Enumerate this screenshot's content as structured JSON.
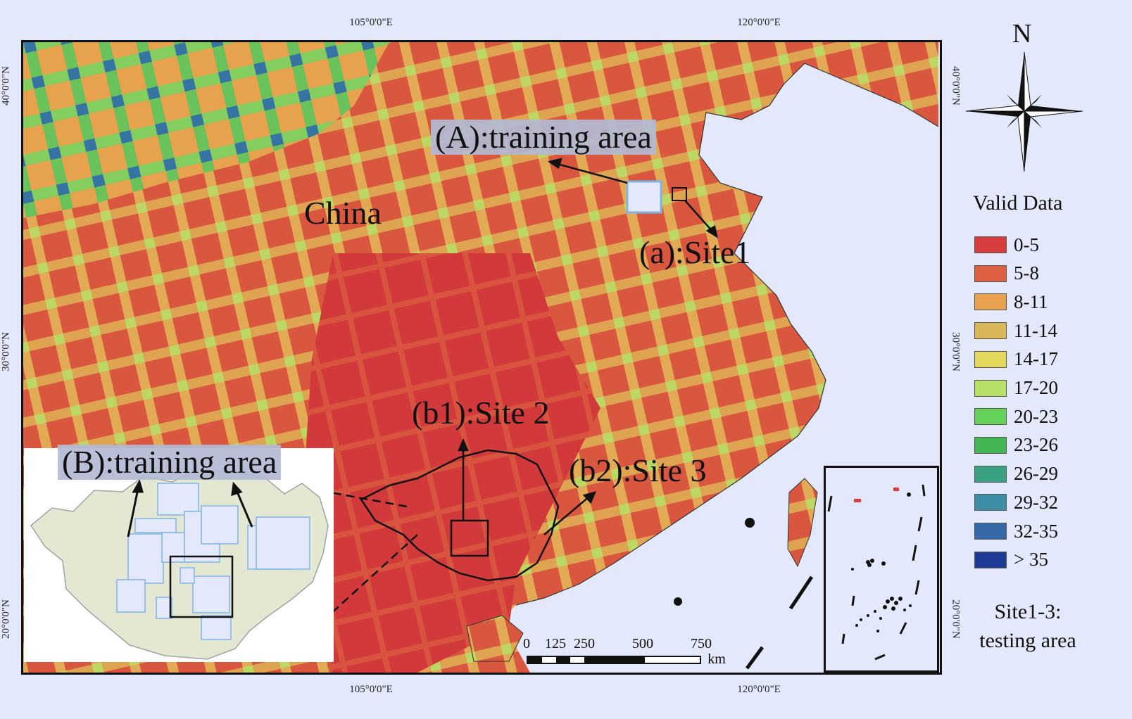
{
  "map": {
    "country_label": "China",
    "training_area_a": "(A):training area",
    "site_a": "(a):Site1",
    "site_b1": "(b1):Site 2",
    "site_b2": "(b2):Site 3",
    "inset_training_area_b": "(B):training area"
  },
  "graticule": {
    "top": [
      "105°0'0\"E",
      "120°0'0\"E"
    ],
    "bottom": [
      "105°0'0\"E",
      "120°0'0\"E"
    ],
    "left": [
      "40°0'0\"N",
      "30°0'0\"N",
      "20°0'0\"N"
    ],
    "right": [
      "40°0'0\"N",
      "30°0'0\"N",
      "20°0'0\"N"
    ]
  },
  "north_arrow": {
    "letter": "N",
    "icon": "compass-rose-icon"
  },
  "legend": {
    "title": "Valid Data",
    "items": [
      {
        "label": "0-5",
        "color": "#d63d3c"
      },
      {
        "label": "5-8",
        "color": "#df5f43"
      },
      {
        "label": "8-11",
        "color": "#e8a24f"
      },
      {
        "label": "11-14",
        "color": "#d9b657"
      },
      {
        "label": "14-17",
        "color": "#e3d85c"
      },
      {
        "label": "17-20",
        "color": "#b7e067"
      },
      {
        "label": "20-23",
        "color": "#63d15a"
      },
      {
        "label": "23-26",
        "color": "#45b455"
      },
      {
        "label": "26-29",
        "color": "#3ba07f"
      },
      {
        "label": "29-32",
        "color": "#3b8ea4"
      },
      {
        "label": "32-35",
        "color": "#3468a6"
      },
      {
        "label": "> 35",
        "color": "#1f3a96"
      }
    ]
  },
  "scale_bar": {
    "ticks": [
      "0",
      "125",
      "250",
      "500",
      "750"
    ],
    "unit": "km"
  },
  "note": {
    "line1": "Site1-3:",
    "line2": "testing area"
  },
  "colors": {
    "background": "#e3e8fb",
    "land_base": "#d64a42",
    "inset_land": "#e4e8d3",
    "training_box": "#7fb3e6"
  }
}
